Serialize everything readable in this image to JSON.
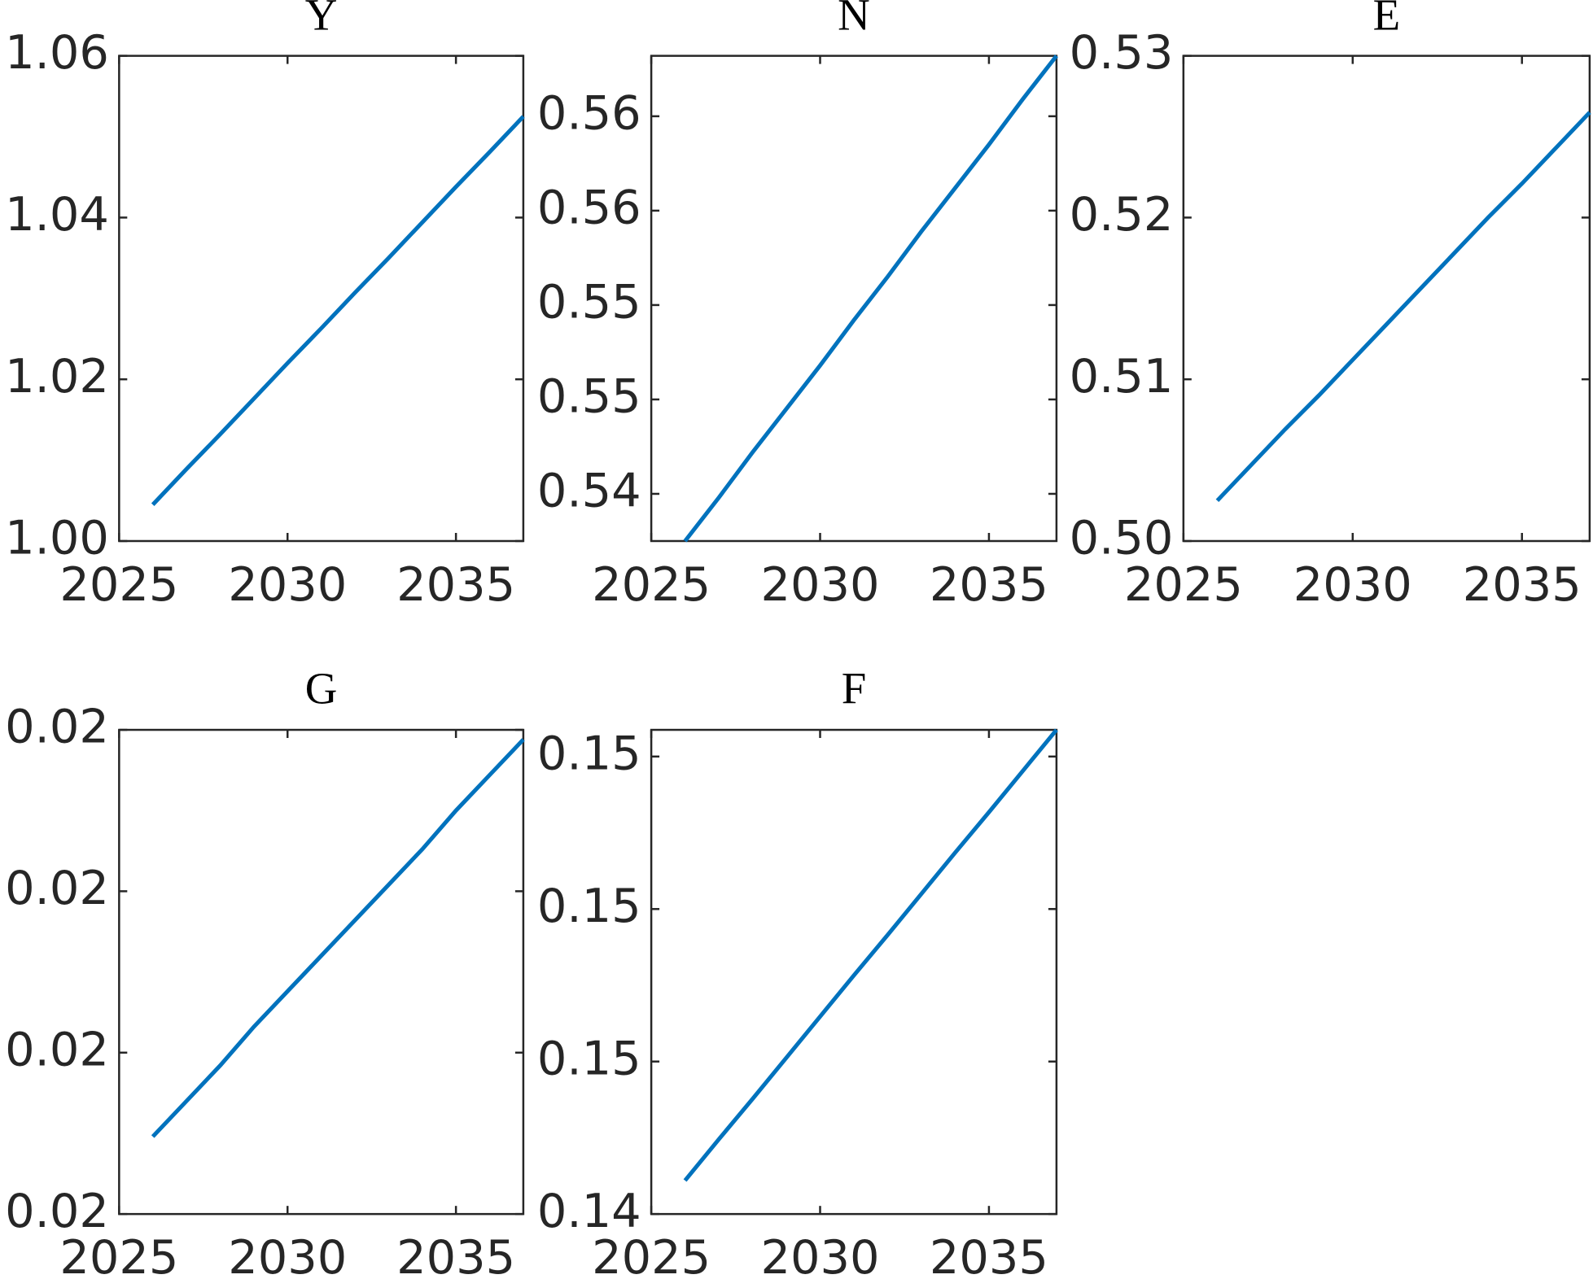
{
  "chart_data": [
    {
      "type": "line",
      "title": "Y",
      "x": [
        2026,
        2027,
        2028,
        2029,
        2030,
        2031,
        2032,
        2033,
        2034,
        2035,
        2036,
        2037
      ],
      "values": [
        1.0045,
        1.0089,
        1.0132,
        1.0176,
        1.022,
        1.0263,
        1.0307,
        1.035,
        1.0394,
        1.0438,
        1.0481,
        1.0525
      ],
      "color": "#0072bd",
      "xlim": [
        2025,
        2037
      ],
      "xticks": [
        2025,
        2030,
        2035
      ],
      "ylim": [
        1.0,
        1.06
      ],
      "yticks": [
        {
          "value": 1.0,
          "label": "1.00"
        },
        1.02,
        1.04,
        1.06
      ]
    },
    {
      "type": "line",
      "title": "N",
      "x": [
        2026,
        2027,
        2028,
        2029,
        2030,
        2031,
        2032,
        2033,
        2034,
        2035,
        2036,
        2037
      ],
      "values": [
        0.5375,
        0.5398,
        0.5422,
        0.5445,
        0.5468,
        0.5492,
        0.5515,
        0.5539,
        0.5562,
        0.5585,
        0.5609,
        0.5632
      ],
      "color": "#0072bd",
      "xlim": [
        2025,
        2037
      ],
      "xticks": [
        2025,
        2030,
        2035
      ],
      "ylim": [
        0.5375,
        0.5632
      ],
      "yticks": [
        0.54,
        {
          "value": 0.545,
          "label": "0.55"
        },
        0.55,
        {
          "value": 0.555,
          "label": "0.56"
        },
        0.56
      ]
    },
    {
      "type": "line",
      "title": "E",
      "x": [
        2026,
        2027,
        2028,
        2029,
        2030,
        2031,
        2032,
        2033,
        2034,
        2035,
        2036,
        2037
      ],
      "values": [
        0.5025,
        0.5047,
        0.5069,
        0.509,
        0.5112,
        0.5134,
        0.5156,
        0.5178,
        0.52,
        0.5221,
        0.5243,
        0.5265
      ],
      "color": "#0072bd",
      "xlim": [
        2025,
        2037
      ],
      "xticks": [
        2025,
        2030,
        2035
      ],
      "ylim": [
        0.5,
        0.53
      ],
      "yticks": [
        {
          "value": 0.5,
          "label": "0.50"
        },
        0.51,
        0.52,
        0.53
      ]
    },
    {
      "type": "line",
      "title": "G",
      "x": [
        2026,
        2027,
        2028,
        2029,
        2030,
        2031,
        2032,
        2033,
        2034,
        2035,
        2036,
        2037
      ],
      "values": [
        0.02024,
        0.02035,
        0.02046,
        0.02058,
        0.02069,
        0.0208,
        0.02091,
        0.02102,
        0.02113,
        0.02125,
        0.02136,
        0.02147
      ],
      "color": "#0072bd",
      "xlim": [
        2025,
        2037
      ],
      "xticks": [
        2025,
        2030,
        2035
      ],
      "ylim": [
        0.02,
        0.0215
      ],
      "yticks": [
        0.02,
        {
          "value": 0.0205,
          "label": "0.02"
        },
        {
          "value": 0.021,
          "label": "0.02"
        },
        {
          "value": 0.0215,
          "label": "0.02"
        }
      ]
    },
    {
      "type": "line",
      "title": "F",
      "x": [
        2026,
        2027,
        2028,
        2029,
        2030,
        2031,
        2032,
        2033,
        2034,
        2035,
        2036,
        2037
      ],
      "values": [
        0.14444,
        0.14498,
        0.14551,
        0.14605,
        0.14659,
        0.14713,
        0.14766,
        0.1482,
        0.14874,
        0.14927,
        0.14981,
        0.15035
      ],
      "color": "#0072bd",
      "xlim": [
        2025,
        2037
      ],
      "xticks": [
        2025,
        2030,
        2035
      ],
      "ylim": [
        0.144,
        0.15035
      ],
      "yticks": [
        {
          "value": 0.144,
          "label": "0.14"
        },
        {
          "value": 0.146,
          "label": "0.15"
        },
        {
          "value": 0.148,
          "label": "0.15"
        },
        {
          "value": 0.15,
          "label": "0.15"
        }
      ]
    }
  ]
}
